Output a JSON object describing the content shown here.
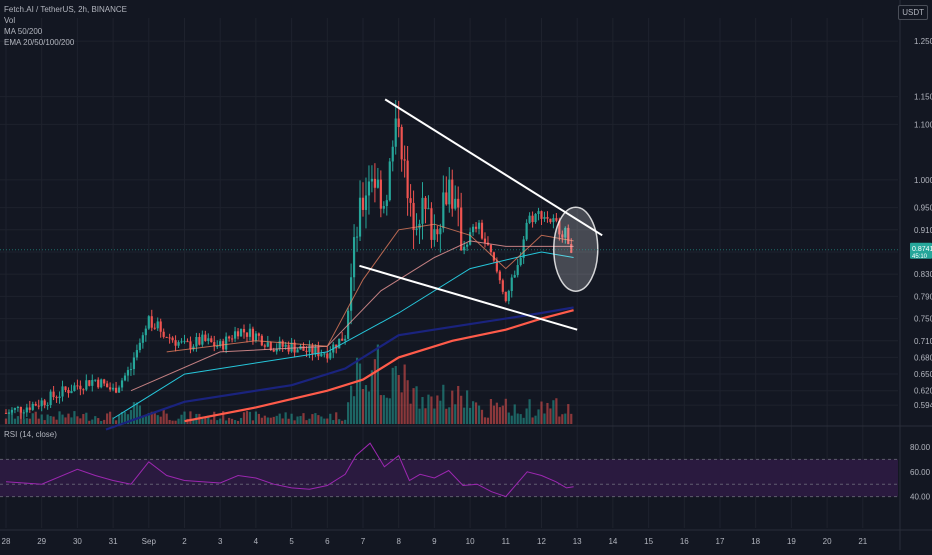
{
  "legend": {
    "title": "Fetch.AI / TetherUS, 2h, BINANCE",
    "vol": "Vol",
    "ma": "MA 50/200",
    "ema": "EMA 20/50/100/200"
  },
  "rsi_legend": "RSI (14, close)",
  "currency": "USDT",
  "price_label": "0.8741",
  "price_sublabel": "45:10",
  "colors": {
    "background": "#131722",
    "up": "#26a69a",
    "down": "#ef5350",
    "rsi_band": "#2a1a3f",
    "rsi_line": "#9c27b0",
    "ema_teal": "#26c6da",
    "ma_navy": "#1a237e",
    "ma_red": "#ff5b4a",
    "trendline": "#ffffff"
  },
  "chart_data": {
    "type": "candlestick",
    "title": "Fetch.AI / TetherUS, 2h, BINANCE",
    "y_axis_ticks": [
      "1.250",
      "1.150",
      "1.100",
      "1.000",
      "0.950",
      "0.910",
      "0.870",
      "0.830",
      "0.790",
      "0.750",
      "0.710",
      "0.680",
      "0.650",
      "0.620",
      "0.5940"
    ],
    "y_axis_tick_values": [
      1.25,
      1.15,
      1.1,
      1.0,
      0.95,
      0.91,
      0.87,
      0.83,
      0.79,
      0.75,
      0.71,
      0.68,
      0.65,
      0.62,
      0.594
    ],
    "x_axis_ticks": [
      "28",
      "29",
      "30",
      "31",
      "Sep",
      "2",
      "3",
      "4",
      "5",
      "6",
      "7",
      "8",
      "9",
      "10",
      "11",
      "12",
      "13",
      "14",
      "15",
      "16",
      "17",
      "18",
      "19",
      "20",
      "21"
    ],
    "x_axis_tick_days": [
      0,
      1,
      2,
      3,
      4,
      5,
      6,
      7,
      8,
      9,
      10,
      11,
      12,
      13,
      14,
      15,
      16,
      17,
      18,
      19,
      20,
      21,
      22,
      23,
      24
    ],
    "candle_anchor_closes": [
      [
        0.0,
        0.58
      ],
      [
        1.0,
        0.6
      ],
      [
        2.0,
        0.63
      ],
      [
        2.5,
        0.64
      ],
      [
        3.0,
        0.62
      ],
      [
        3.5,
        0.66
      ],
      [
        4.0,
        0.75
      ],
      [
        4.5,
        0.72
      ],
      [
        5.0,
        0.7
      ],
      [
        5.5,
        0.71
      ],
      [
        6.0,
        0.7
      ],
      [
        6.5,
        0.73
      ],
      [
        7.0,
        0.72
      ],
      [
        7.5,
        0.7
      ],
      [
        8.0,
        0.7
      ],
      [
        8.5,
        0.69
      ],
      [
        9.0,
        0.69
      ],
      [
        9.5,
        0.72
      ],
      [
        9.8,
        0.9
      ],
      [
        10.2,
        1.02
      ],
      [
        10.6,
        0.96
      ],
      [
        11.0,
        1.12
      ],
      [
        11.3,
        0.93
      ],
      [
        11.6,
        0.95
      ],
      [
        12.0,
        0.91
      ],
      [
        12.4,
        1.0
      ],
      [
        12.8,
        0.88
      ],
      [
        13.2,
        0.92
      ],
      [
        13.6,
        0.86
      ],
      [
        14.0,
        0.79
      ],
      [
        14.3,
        0.83
      ],
      [
        14.6,
        0.93
      ],
      [
        15.0,
        0.94
      ],
      [
        15.4,
        0.92
      ],
      [
        15.7,
        0.9
      ],
      [
        15.9,
        0.87
      ]
    ],
    "ema20_points": [
      [
        4.5,
        0.69
      ],
      [
        7.0,
        0.71
      ],
      [
        9.0,
        0.7
      ],
      [
        10.0,
        0.82
      ],
      [
        11.0,
        0.91
      ],
      [
        12.0,
        0.92
      ],
      [
        13.0,
        0.9
      ],
      [
        14.0,
        0.84
      ],
      [
        15.0,
        0.9
      ],
      [
        15.9,
        0.89
      ]
    ],
    "ema50_points": [
      [
        3.5,
        0.62
      ],
      [
        6.0,
        0.69
      ],
      [
        9.0,
        0.7
      ],
      [
        10.5,
        0.8
      ],
      [
        12.0,
        0.86
      ],
      [
        13.0,
        0.89
      ],
      [
        14.0,
        0.88
      ],
      [
        15.0,
        0.88
      ],
      [
        15.9,
        0.88
      ]
    ],
    "ema100_points": [
      [
        3.0,
        0.57
      ],
      [
        5.0,
        0.65
      ],
      [
        9.0,
        0.69
      ],
      [
        11.0,
        0.76
      ],
      [
        13.0,
        0.84
      ],
      [
        14.3,
        0.86
      ],
      [
        15.0,
        0.87
      ],
      [
        15.9,
        0.86
      ]
    ],
    "ma50_points": [
      [
        2.8,
        0.55
      ],
      [
        5.0,
        0.6
      ],
      [
        8.0,
        0.63
      ],
      [
        9.5,
        0.66
      ],
      [
        11.0,
        0.72
      ],
      [
        13.0,
        0.74
      ],
      [
        15.0,
        0.76
      ],
      [
        15.9,
        0.77
      ]
    ],
    "ma200_points": [
      [
        5.0,
        0.565
      ],
      [
        7.0,
        0.59
      ],
      [
        9.0,
        0.62
      ],
      [
        10.0,
        0.64
      ],
      [
        11.0,
        0.68
      ],
      [
        12.5,
        0.71
      ],
      [
        14.0,
        0.73
      ],
      [
        15.0,
        0.75
      ],
      [
        15.9,
        0.765
      ]
    ],
    "trendline_upper": [
      [
        10.62,
        1.145
      ],
      [
        16.7,
        0.9
      ]
    ],
    "trendline_lower": [
      [
        9.9,
        0.845
      ],
      [
        16.0,
        0.73
      ]
    ],
    "highlight_circle_center": [
      15.96,
      0.875
    ],
    "rsi_points": [
      [
        0.0,
        52
      ],
      [
        1.0,
        50
      ],
      [
        2.0,
        62
      ],
      [
        2.5,
        57
      ],
      [
        3.0,
        53
      ],
      [
        3.5,
        50
      ],
      [
        4.0,
        68
      ],
      [
        4.5,
        57
      ],
      [
        5.0,
        53
      ],
      [
        5.5,
        52
      ],
      [
        6.0,
        51
      ],
      [
        6.5,
        57
      ],
      [
        7.0,
        55
      ],
      [
        7.5,
        50
      ],
      [
        8.0,
        47
      ],
      [
        8.5,
        46
      ],
      [
        9.0,
        49
      ],
      [
        9.5,
        58
      ],
      [
        9.8,
        73
      ],
      [
        10.2,
        83
      ],
      [
        10.6,
        64
      ],
      [
        11.0,
        73
      ],
      [
        11.3,
        53
      ],
      [
        11.6,
        58
      ],
      [
        12.0,
        55
      ],
      [
        12.4,
        61
      ],
      [
        12.8,
        49
      ],
      [
        13.2,
        50
      ],
      [
        13.6,
        44
      ],
      [
        14.0,
        40
      ],
      [
        14.3,
        50
      ],
      [
        14.6,
        60
      ],
      [
        15.0,
        57
      ],
      [
        15.4,
        52
      ],
      [
        15.7,
        47
      ],
      [
        15.9,
        48
      ]
    ],
    "rsi_ticks": [
      "80.00",
      "60.00",
      "40.00"
    ],
    "rsi_tick_values": [
      80,
      60,
      40
    ],
    "rsi_band": [
      40,
      70
    ],
    "grid": true
  }
}
